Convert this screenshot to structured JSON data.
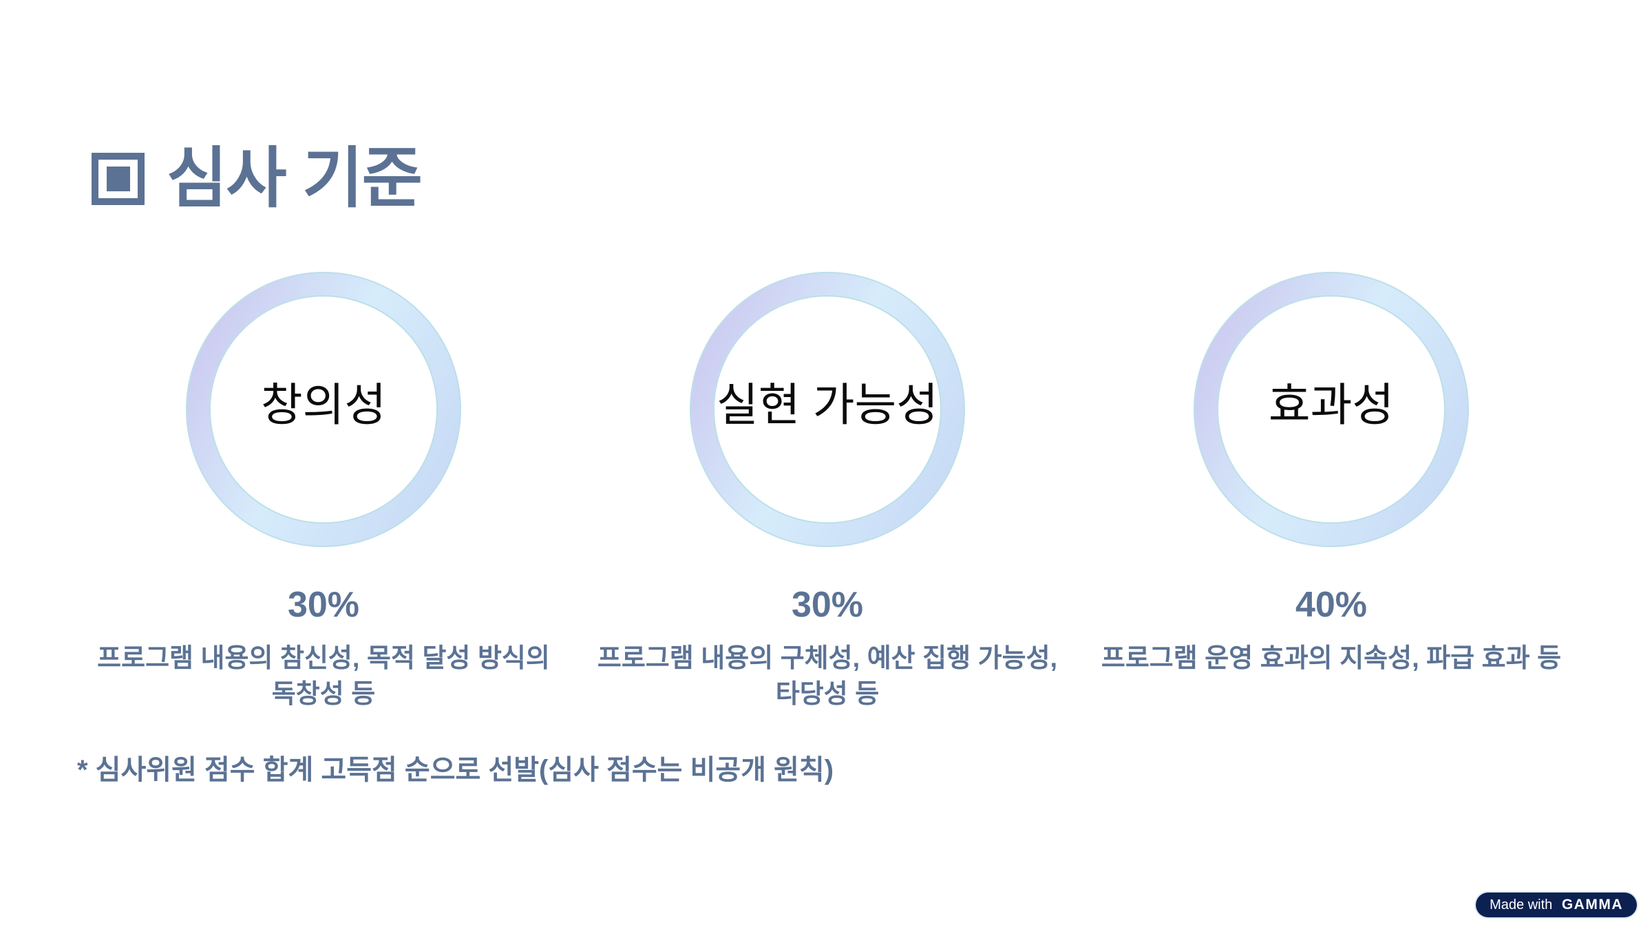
{
  "slide": {
    "title": "심사 기준",
    "footnote": "* 심사위원 점수 합계 고득점 순으로 선발(심사 점수는 비공개 원칙)"
  },
  "criteria": [
    {
      "name": "창의성",
      "weight": "30%",
      "description": "프로그램 내용의 참신성, 목적 달성 방식의 독창성 등"
    },
    {
      "name": "실현 가능성",
      "weight": "30%",
      "description": "프로그램 내용의 구체성, 예산 집행 가능성, 타당성 등"
    },
    {
      "name": "효과성",
      "weight": "40%",
      "description": "프로그램 운영 효과의 지속성, 파급 효과 등"
    }
  ],
  "badge": {
    "prefix": "Made with ",
    "brand": "GAMMA"
  },
  "colors": {
    "slate": "#5b7294",
    "ring_lavender": "#cbc7ef",
    "ring_sky": "#d6ecfb",
    "ring_periwinkle": "#c6d8f5",
    "ring_stroke": "#bcdfe9",
    "label_black": "#0b0b0c",
    "badge_bg": "#0c2150",
    "badge_text": "#ffffff"
  }
}
